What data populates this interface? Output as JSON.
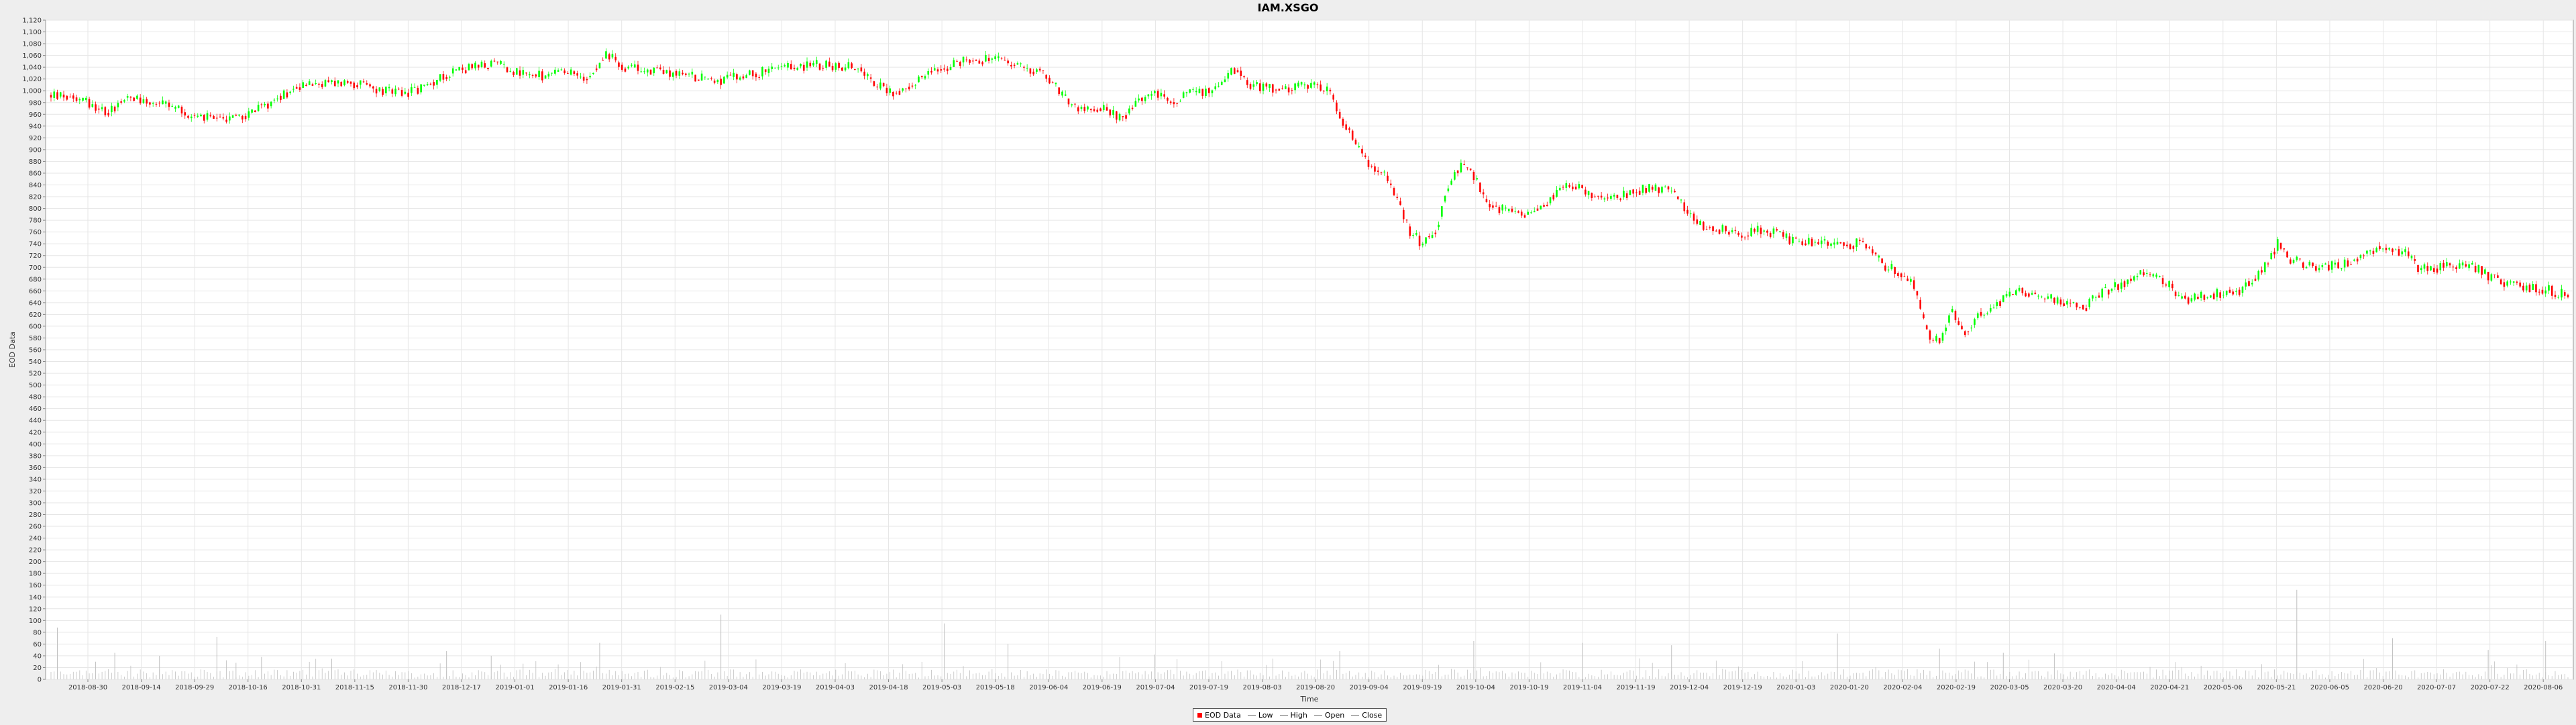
{
  "chart_data": {
    "type": "candlestick",
    "title": "IAM.XSGO",
    "xlabel": "Time",
    "ylabel": "EOD Data",
    "ylim": [
      0,
      1120
    ],
    "y_tick_step": 20,
    "y_ticks_note": "0..1,120 every 20",
    "x_tick_labels": [
      "2018-08-30",
      "2018-09-14",
      "2018-09-29",
      "2018-10-16",
      "2018-10-31",
      "2018-11-15",
      "2018-11-30",
      "2018-12-17",
      "2019-01-01",
      "2019-01-16",
      "2019-01-31",
      "2019-02-15",
      "2019-03-04",
      "2019-03-19",
      "2019-04-03",
      "2019-04-18",
      "2019-05-03",
      "2019-05-18",
      "2019-06-04",
      "2019-06-19",
      "2019-07-04",
      "2019-07-19",
      "2019-08-03",
      "2019-08-20",
      "2019-09-04",
      "2019-09-19",
      "2019-10-04",
      "2019-10-19",
      "2019-11-04",
      "2019-11-19",
      "2019-12-04",
      "2019-12-19",
      "2020-01-03",
      "2020-01-20",
      "2020-02-04",
      "2020-02-19",
      "2020-03-05",
      "2020-03-20",
      "2020-04-04",
      "2020-04-21",
      "2020-05-06",
      "2020-05-21",
      "2020-06-05",
      "2020-06-20",
      "2020-07-07",
      "2020-07-22",
      "2020-08-06"
    ],
    "colors": {
      "up": "#00ff00",
      "down": "#ff0000",
      "volume": "#c0c0c0",
      "grid": "#e6e6e6"
    },
    "anchors": [
      [
        0,
        992
      ],
      [
        8,
        990
      ],
      [
        14,
        975
      ],
      [
        18,
        963
      ],
      [
        22,
        985
      ],
      [
        26,
        990
      ],
      [
        30,
        982
      ],
      [
        38,
        972
      ],
      [
        46,
        955
      ],
      [
        52,
        952
      ],
      [
        58,
        955
      ],
      [
        64,
        965
      ],
      [
        70,
        985
      ],
      [
        78,
        1010
      ],
      [
        86,
        1012
      ],
      [
        94,
        1015
      ],
      [
        102,
        1002
      ],
      [
        110,
        995
      ],
      [
        118,
        1008
      ],
      [
        126,
        1035
      ],
      [
        134,
        1040
      ],
      [
        140,
        1045
      ],
      [
        148,
        1028
      ],
      [
        154,
        1025
      ],
      [
        160,
        1030
      ],
      [
        168,
        1025
      ],
      [
        174,
        1062
      ],
      [
        180,
        1040
      ],
      [
        188,
        1035
      ],
      [
        196,
        1030
      ],
      [
        204,
        1022
      ],
      [
        210,
        1018
      ],
      [
        218,
        1025
      ],
      [
        226,
        1035
      ],
      [
        234,
        1040
      ],
      [
        240,
        1045
      ],
      [
        250,
        1040
      ],
      [
        254,
        1040
      ],
      [
        258,
        1015
      ],
      [
        264,
        995
      ],
      [
        272,
        1020
      ],
      [
        280,
        1040
      ],
      [
        288,
        1055
      ],
      [
        296,
        1052
      ],
      [
        304,
        1040
      ],
      [
        310,
        1035
      ],
      [
        316,
        1000
      ],
      [
        320,
        975
      ],
      [
        326,
        965
      ],
      [
        330,
        975
      ],
      [
        336,
        950
      ],
      [
        340,
        985
      ],
      [
        346,
        995
      ],
      [
        352,
        985
      ],
      [
        358,
        995
      ],
      [
        364,
        1000
      ],
      [
        368,
        1020
      ],
      [
        372,
        1040
      ],
      [
        376,
        1010
      ],
      [
        382,
        1005
      ],
      [
        388,
        1002
      ],
      [
        394,
        1008
      ],
      [
        400,
        1002
      ],
      [
        404,
        955
      ],
      [
        408,
        925
      ],
      [
        412,
        880
      ],
      [
        418,
        860
      ],
      [
        422,
        810
      ],
      [
        426,
        760
      ],
      [
        430,
        740
      ],
      [
        434,
        760
      ],
      [
        438,
        840
      ],
      [
        442,
        870
      ],
      [
        446,
        855
      ],
      [
        450,
        810
      ],
      [
        456,
        795
      ],
      [
        462,
        790
      ],
      [
        468,
        805
      ],
      [
        472,
        830
      ],
      [
        478,
        840
      ],
      [
        484,
        820
      ],
      [
        490,
        815
      ],
      [
        496,
        830
      ],
      [
        502,
        835
      ],
      [
        508,
        830
      ],
      [
        512,
        800
      ],
      [
        518,
        770
      ],
      [
        524,
        765
      ],
      [
        530,
        755
      ],
      [
        536,
        765
      ],
      [
        542,
        755
      ],
      [
        548,
        740
      ],
      [
        554,
        745
      ],
      [
        560,
        740
      ],
      [
        566,
        740
      ],
      [
        570,
        735
      ],
      [
        574,
        705
      ],
      [
        580,
        690
      ],
      [
        584,
        670
      ],
      [
        588,
        590
      ],
      [
        592,
        570
      ],
      [
        596,
        630
      ],
      [
        600,
        585
      ],
      [
        604,
        620
      ],
      [
        610,
        640
      ],
      [
        618,
        660
      ],
      [
        624,
        650
      ],
      [
        632,
        640
      ],
      [
        638,
        635
      ],
      [
        644,
        660
      ],
      [
        650,
        675
      ],
      [
        656,
        690
      ],
      [
        662,
        680
      ],
      [
        668,
        645
      ],
      [
        674,
        650
      ],
      [
        680,
        655
      ],
      [
        686,
        660
      ],
      [
        690,
        680
      ],
      [
        694,
        700
      ],
      [
        698,
        740
      ],
      [
        702,
        715
      ],
      [
        706,
        705
      ],
      [
        712,
        700
      ],
      [
        718,
        705
      ],
      [
        724,
        720
      ],
      [
        730,
        735
      ],
      [
        734,
        730
      ],
      [
        738,
        725
      ],
      [
        742,
        700
      ],
      [
        748,
        700
      ],
      [
        754,
        705
      ],
      [
        760,
        700
      ],
      [
        766,
        680
      ],
      [
        772,
        670
      ],
      [
        778,
        665
      ],
      [
        784,
        660
      ],
      [
        786,
        655
      ]
    ],
    "volume_spikes": [
      [
        2,
        88
      ],
      [
        14,
        30
      ],
      [
        20,
        45
      ],
      [
        34,
        40
      ],
      [
        52,
        72
      ],
      [
        58,
        28
      ],
      [
        66,
        38
      ],
      [
        88,
        35
      ],
      [
        124,
        48
      ],
      [
        138,
        40
      ],
      [
        172,
        62
      ],
      [
        210,
        110
      ],
      [
        280,
        95
      ],
      [
        300,
        60
      ],
      [
        346,
        42
      ],
      [
        404,
        48
      ],
      [
        446,
        65
      ],
      [
        480,
        62
      ],
      [
        508,
        58
      ],
      [
        560,
        78
      ],
      [
        592,
        52
      ],
      [
        612,
        45
      ],
      [
        628,
        44
      ],
      [
        704,
        152
      ],
      [
        734,
        70
      ],
      [
        764,
        50
      ],
      [
        782,
        65
      ]
    ]
  },
  "legend": {
    "items": [
      {
        "label": "EOD Data",
        "color": "#ff0000",
        "kind": "swatch"
      },
      {
        "label": "Low",
        "color": "#888888",
        "kind": "line"
      },
      {
        "label": "High",
        "color": "#888888",
        "kind": "line"
      },
      {
        "label": "Open",
        "color": "#888888",
        "kind": "line"
      },
      {
        "label": "Close",
        "color": "#888888",
        "kind": "line"
      }
    ]
  }
}
